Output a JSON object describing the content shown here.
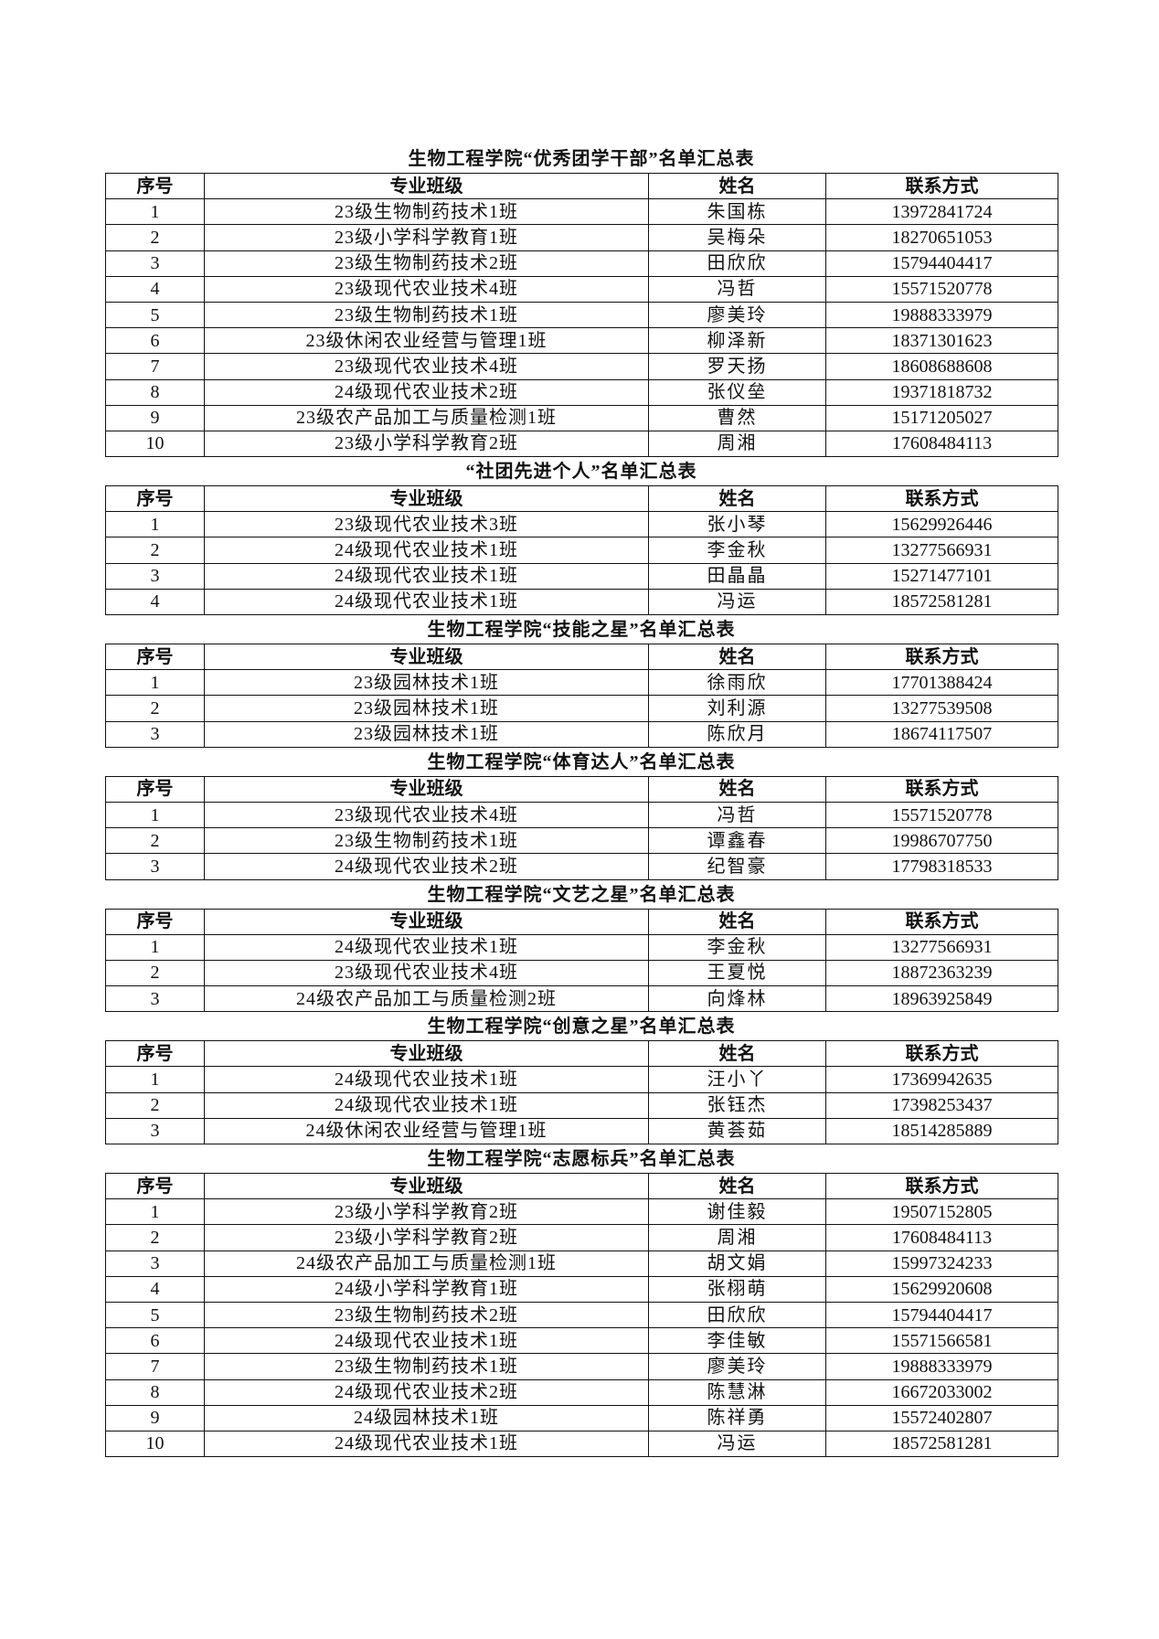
{
  "headers": [
    "序号",
    "专业班级",
    "姓名",
    "联系方式"
  ],
  "tables": [
    {
      "title": "生物工程学院“优秀团学干部”名单汇总表",
      "rows": [
        [
          "1",
          "23级生物制药技术1班",
          "朱国栋",
          "13972841724"
        ],
        [
          "2",
          "23级小学科学教育1班",
          "吴梅朵",
          "18270651053"
        ],
        [
          "3",
          "23级生物制药技术2班",
          "田欣欣",
          "15794404417"
        ],
        [
          "4",
          "23级现代农业技术4班",
          "冯哲",
          "15571520778"
        ],
        [
          "5",
          "23级生物制药技术1班",
          "廖美玲",
          "19888333979"
        ],
        [
          "6",
          "23级休闲农业经营与管理1班",
          "柳泽新",
          "18371301623"
        ],
        [
          "7",
          "23级现代农业技术4班",
          "罗天扬",
          "18608688608"
        ],
        [
          "8",
          "24级现代农业技术2班",
          "张仪垒",
          "19371818732"
        ],
        [
          "9",
          "23级农产品加工与质量检测1班",
          "曹然",
          "15171205027"
        ],
        [
          "10",
          "23级小学科学教育2班",
          "周湘",
          "17608484113"
        ]
      ]
    },
    {
      "title": "“社团先进个人”名单汇总表",
      "rows": [
        [
          "1",
          "23级现代农业技术3班",
          "张小琴",
          "15629926446"
        ],
        [
          "2",
          "24级现代农业技术1班",
          "李金秋",
          "13277566931"
        ],
        [
          "3",
          "24级现代农业技术1班",
          "田晶晶",
          "15271477101"
        ],
        [
          "4",
          "24级现代农业技术1班",
          "冯运",
          "18572581281"
        ]
      ]
    },
    {
      "title": "生物工程学院“技能之星”名单汇总表",
      "rows": [
        [
          "1",
          "23级园林技术1班",
          "徐雨欣",
          "17701388424"
        ],
        [
          "2",
          "23级园林技术1班",
          "刘利源",
          "13277539508"
        ],
        [
          "3",
          "23级园林技术1班",
          "陈欣月",
          "18674117507"
        ]
      ]
    },
    {
      "title": "生物工程学院“体育达人”名单汇总表",
      "rows": [
        [
          "1",
          "23级现代农业技术4班",
          "冯哲",
          "15571520778"
        ],
        [
          "2",
          "23级生物制药技术1班",
          "谭鑫春",
          "19986707750"
        ],
        [
          "3",
          "24级现代农业技术2班",
          "纪智豪",
          "17798318533"
        ]
      ]
    },
    {
      "title": "生物工程学院“文艺之星”名单汇总表",
      "rows": [
        [
          "1",
          "24级现代农业技术1班",
          "李金秋",
          "13277566931"
        ],
        [
          "2",
          "23级现代农业技术4班",
          "王夏悦",
          "18872363239"
        ],
        [
          "3",
          "24级农产品加工与质量检测2班",
          "向烽林",
          "18963925849"
        ]
      ]
    },
    {
      "title": "生物工程学院“创意之星”名单汇总表",
      "rows": [
        [
          "1",
          "24级现代农业技术1班",
          "汪小丫",
          "17369942635"
        ],
        [
          "2",
          "24级现代农业技术1班",
          "张钰杰",
          "17398253437"
        ],
        [
          "3",
          "24级休闲农业经营与管理1班",
          "黄荟茹",
          "18514285889"
        ]
      ]
    },
    {
      "title": "生物工程学院“志愿标兵”名单汇总表",
      "rows": [
        [
          "1",
          "23级小学科学教育2班",
          "谢佳毅",
          "19507152805"
        ],
        [
          "2",
          "23级小学科学教育2班",
          "周湘",
          "17608484113"
        ],
        [
          "3",
          "24级农产品加工与质量检测1班",
          "胡文娟",
          "15997324233"
        ],
        [
          "4",
          "24级小学科学教育1班",
          "张栩萌",
          "15629920608"
        ],
        [
          "5",
          "23级生物制药技术2班",
          "田欣欣",
          "15794404417"
        ],
        [
          "6",
          "24级现代农业技术1班",
          "李佳敏",
          "15571566581"
        ],
        [
          "7",
          "23级生物制药技术1班",
          "廖美玲",
          "19888333979"
        ],
        [
          "8",
          "24级现代农业技术2班",
          "陈慧淋",
          "16672033002"
        ],
        [
          "9",
          "24级园林技术1班",
          "陈祥勇",
          "15572402807"
        ],
        [
          "10",
          "24级现代农业技术1班",
          "冯运",
          "18572581281"
        ]
      ]
    }
  ]
}
